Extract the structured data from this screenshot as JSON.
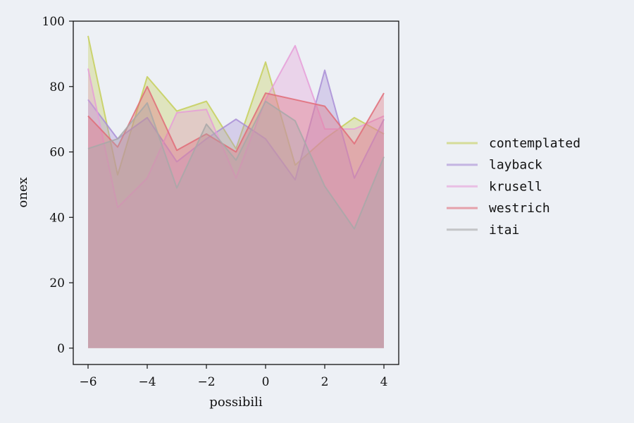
{
  "chart_data": {
    "type": "area",
    "title": "",
    "xlabel": "possibili",
    "ylabel": "onex",
    "x": [
      -6,
      -5,
      -4,
      -3,
      -2,
      -1,
      0,
      1,
      2,
      3,
      4
    ],
    "xlim": [
      -6.5,
      4.5
    ],
    "ylim": [
      -5,
      100
    ],
    "xticks": [
      -6,
      -4,
      -2,
      0,
      2,
      4
    ],
    "xtick_labels": [
      "−6",
      "−4",
      "−2",
      "0",
      "2",
      "4"
    ],
    "yticks": [
      0,
      20,
      40,
      60,
      80,
      100
    ],
    "ytick_labels": [
      "0",
      "20",
      "40",
      "60",
      "80",
      "100"
    ],
    "grid": false,
    "legend_position": "right",
    "series": [
      {
        "name": "contemplated",
        "color": "#c5cf5a",
        "values": [
          95.5,
          53,
          83,
          72.5,
          75.5,
          61,
          87.5,
          56,
          64,
          70.5,
          65.5
        ]
      },
      {
        "name": "layback",
        "color": "#a98ed6",
        "values": [
          76,
          64,
          70.5,
          57,
          64,
          70,
          64,
          51.5,
          85,
          52,
          70
        ]
      },
      {
        "name": "krusell",
        "color": "#e69ed8",
        "values": [
          85.5,
          43,
          52,
          72,
          73,
          52,
          76,
          92.5,
          67,
          67,
          71
        ]
      },
      {
        "name": "westrich",
        "color": "#e06c78",
        "values": [
          71,
          61.5,
          80,
          60.5,
          65.5,
          60,
          78,
          76,
          74,
          62.5,
          78
        ]
      },
      {
        "name": "itai",
        "color": "#a8a8a8",
        "values": [
          61,
          64,
          75,
          49,
          68.5,
          57.5,
          75.5,
          69.5,
          49.5,
          36.5,
          58.5
        ]
      }
    ]
  }
}
